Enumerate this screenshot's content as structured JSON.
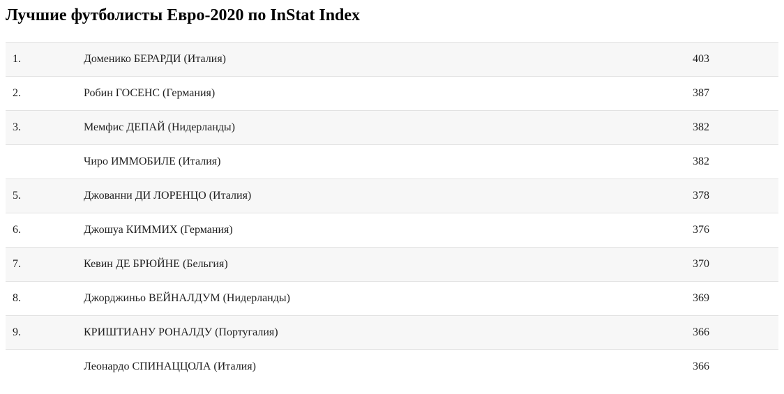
{
  "page": {
    "title": "Лучшие футболисты Евро-2020 по InStat Index"
  },
  "table": {
    "columns": [
      "rank",
      "player",
      "value"
    ],
    "rows": [
      {
        "rank": "1.",
        "player": "Доменико БЕРАРДИ (Италия)",
        "value": "403"
      },
      {
        "rank": "2.",
        "player": "Робин ГОСЕНС (Германия)",
        "value": "387"
      },
      {
        "rank": "3.",
        "player": "Мемфис ДЕПАЙ (Нидерланды)",
        "value": "382"
      },
      {
        "rank": "",
        "player": "Чиро ИММОБИЛЕ (Италия)",
        "value": "382"
      },
      {
        "rank": "5.",
        "player": "Джованни ДИ ЛОРЕНЦО (Италия)",
        "value": "378"
      },
      {
        "rank": "6.",
        "player": "Джошуа КИММИХ (Германия)",
        "value": "376"
      },
      {
        "rank": "7.",
        "player": "Кевин ДЕ БРЮЙНЕ (Бельгия)",
        "value": "370"
      },
      {
        "rank": "8.",
        "player": "Джорджиньо ВЕЙНАЛДУМ (Нидерланды)",
        "value": "369"
      },
      {
        "rank": "9.",
        "player": "КРИШТИАНУ РОНАЛДУ (Португалия)",
        "value": "366"
      },
      {
        "rank": "",
        "player": "Леонардо СПИНАЦЦОЛА (Италия)",
        "value": "366"
      }
    ]
  },
  "colors": {
    "stripe": "#f7f7f7",
    "border": "#e2e2e2",
    "text": "#1f1f1f",
    "title": "#000000"
  }
}
